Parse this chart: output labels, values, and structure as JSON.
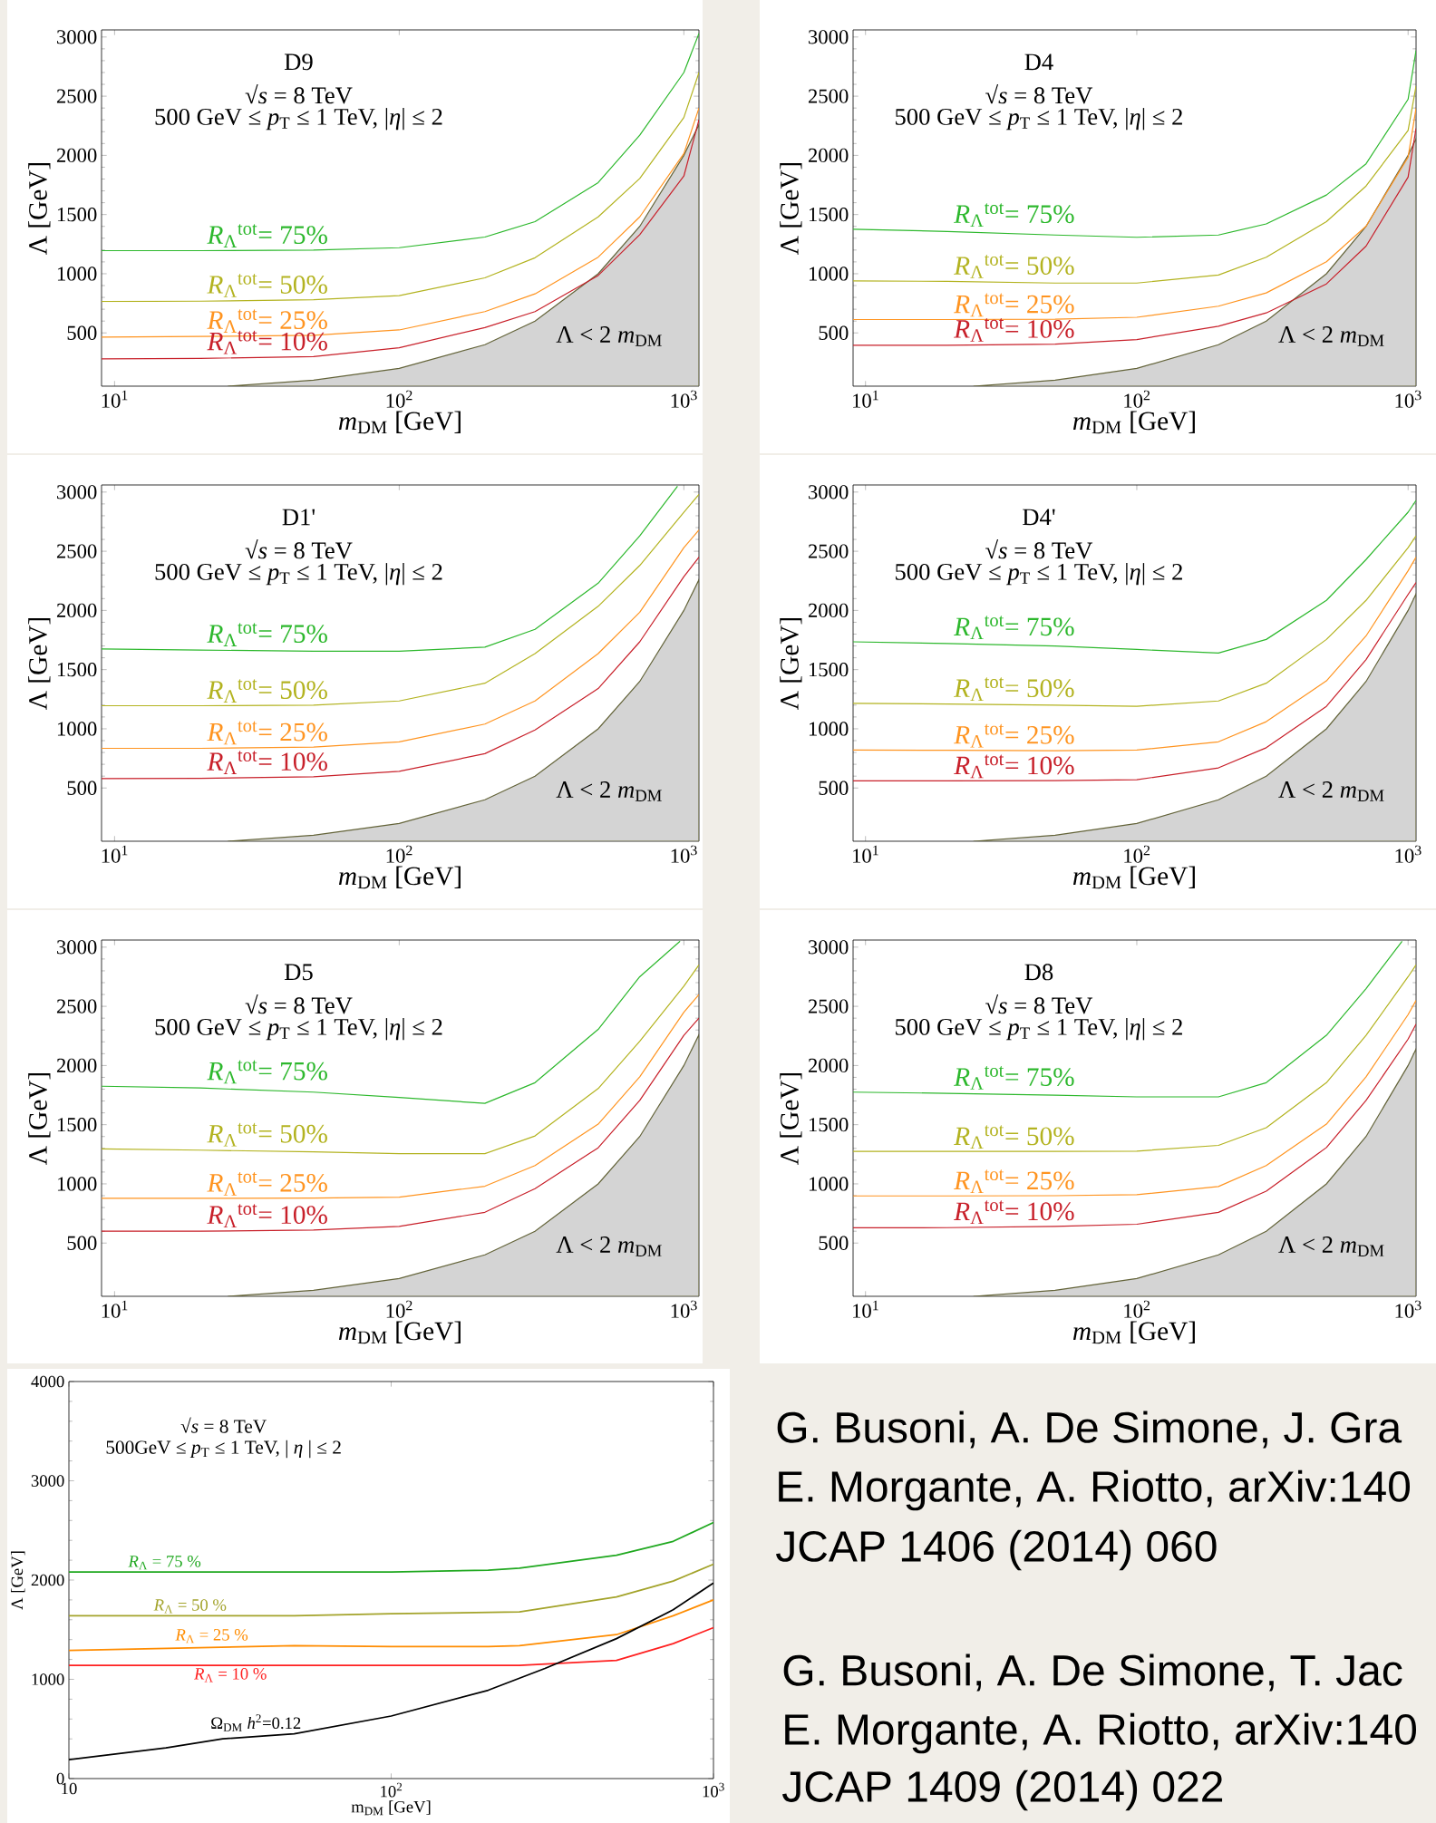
{
  "chart_data": [
    {
      "type": "line",
      "title": "D9",
      "xlabel": "*m*$_{DM}$ [GeV]",
      "ylabel": "Λ [GeV]",
      "log": "x",
      "xlim": [
        9,
        1130
      ],
      "ylim": [
        50,
        3060
      ],
      "xticks": [
        {
          "value": 10,
          "label": "10$^{1}$"
        },
        {
          "value": 100,
          "label": "10$^{2}$"
        },
        {
          "value": 1000,
          "label": "10$^{3}$"
        }
      ],
      "yticks": [
        500,
        1000,
        1500,
        2000,
        2500,
        3000
      ],
      "annotations": [
        "√*s* = 8 TeV",
        "500 GeV ≤ *p*$_{T}$ ≤ 1 TeV, |*η*| ≤ 2",
        "Λ < 2 *m*$_{DM}$"
      ],
      "x": [
        9,
        20,
        50,
        100,
        200,
        300,
        500,
        700,
        1000,
        1130
      ],
      "series": [
        {
          "name": "*R*$_{Λ}$$^{tot}$= 75%",
          "color": "#2db82d",
          "values": [
            1195,
            1195,
            1200,
            1220,
            1310,
            1440,
            1770,
            2170,
            2700,
            3030
          ]
        },
        {
          "name": "*R*$_{Λ}$$^{tot}$= 50%",
          "color": "#b3b320",
          "values": [
            765,
            768,
            780,
            815,
            965,
            1135,
            1480,
            1805,
            2320,
            2700
          ]
        },
        {
          "name": "*R*$_{Λ}$$^{tot}$= 25%",
          "color": "#ff9420",
          "values": [
            465,
            470,
            480,
            525,
            680,
            830,
            1140,
            1480,
            2015,
            2400
          ]
        },
        {
          "name": "*R*$_{Λ}$$^{tot}$= 10%",
          "color": "#c8202a",
          "values": [
            280,
            285,
            300,
            375,
            545,
            680,
            985,
            1330,
            1825,
            2300
          ]
        },
        {
          "type": "area",
          "color": "#d4d4d4",
          "x": [
            25,
            50,
            100,
            200,
            300,
            500,
            700,
            1000,
            1130
          ],
          "values": [
            50,
            100,
            200,
            400,
            600,
            1000,
            1400,
            2000,
            2260
          ]
        }
      ]
    },
    {
      "type": "line",
      "title": "D4",
      "xlabel": "*m*$_{DM}$ [GeV]",
      "ylabel": "Λ [GeV]",
      "log": "x",
      "xlim": [
        9,
        1070
      ],
      "ylim": [
        50,
        3060
      ],
      "xticks": [
        {
          "value": 10,
          "label": "10$^{1}$"
        },
        {
          "value": 100,
          "label": "10$^{2}$"
        },
        {
          "value": 1000,
          "label": "10$^{3}$"
        }
      ],
      "yticks": [
        500,
        1000,
        1500,
        2000,
        2500,
        3000
      ],
      "annotations": [
        "√*s* = 8 TeV",
        "500 GeV ≤ *p*$_{T}$ ≤ 1 TeV, |*η*| ≤ 2",
        "Λ < 2 *m*$_{DM}$"
      ],
      "x": [
        9,
        20,
        50,
        100,
        200,
        300,
        500,
        700,
        1000,
        1070
      ],
      "series": [
        {
          "name": "*R*$_{Λ}$$^{tot}$= 75%",
          "color": "#2db82d",
          "values": [
            1376,
            1357,
            1327,
            1308,
            1327,
            1421,
            1665,
            1929,
            2474,
            2887
          ]
        },
        {
          "name": "*R*$_{Λ}$$^{tot}$= 50%",
          "color": "#b3b320",
          "values": [
            940,
            935,
            921,
            921,
            989,
            1139,
            1440,
            1741,
            2210,
            2586
          ]
        },
        {
          "name": "*R*$_{Λ}$$^{tot}$= 25%",
          "color": "#ff9420",
          "values": [
            613,
            613,
            615,
            632,
            726,
            838,
            1101,
            1402,
            1985,
            2398
          ]
        },
        {
          "name": "*R*$_{Λ}$$^{tot}$= 10%",
          "color": "#c8202a",
          "values": [
            395,
            395,
            405,
            444,
            556,
            669,
            914,
            1233,
            1816,
            2229
          ]
        },
        {
          "type": "area",
          "color": "#d4d4d4",
          "x": [
            25,
            50,
            100,
            200,
            300,
            500,
            700,
            1000,
            1070
          ],
          "values": [
            50,
            100,
            200,
            400,
            600,
            1000,
            1400,
            2000,
            2140
          ]
        }
      ]
    },
    {
      "type": "line",
      "title": "D1'",
      "xlabel": "*m*$_{DM}$ [GeV]",
      "ylabel": "Λ [GeV]",
      "log": "x",
      "xlim": [
        9,
        1130
      ],
      "ylim": [
        50,
        3060
      ],
      "xticks": [
        {
          "value": 10,
          "label": "10$^{1}$"
        },
        {
          "value": 100,
          "label": "10$^{2}$"
        },
        {
          "value": 1000,
          "label": "10$^{3}$"
        }
      ],
      "yticks": [
        500,
        1000,
        1500,
        2000,
        2500,
        3000
      ],
      "annotations": [
        "√*s* = 8 TeV",
        "500 GeV ≤ *p*$_{T}$ ≤ 1 TeV, |*η*| ≤ 2",
        "Λ < 2 *m*$_{DM}$"
      ],
      "x": [
        9,
        20,
        50,
        100,
        200,
        300,
        500,
        700,
        1000,
        1130
      ],
      "series": [
        {
          "name": "*R*$_{Λ}$$^{tot}$= 75%",
          "color": "#2db82d",
          "x": [
            9,
            20,
            50,
            100,
            200,
            300,
            500,
            700,
            950
          ],
          "values": [
            1675,
            1665,
            1655,
            1655,
            1690,
            1840,
            2230,
            2630,
            3050
          ]
        },
        {
          "name": "*R*$_{Λ}$$^{tot}$= 50%",
          "color": "#b3b320",
          "values": [
            1195,
            1195,
            1200,
            1235,
            1385,
            1635,
            2035,
            2380,
            2830,
            2980
          ]
        },
        {
          "name": "*R*$_{Λ}$$^{tot}$= 25%",
          "color": "#ff9420",
          "values": [
            835,
            835,
            845,
            890,
            1040,
            1235,
            1635,
            1985,
            2530,
            2680
          ]
        },
        {
          "name": "*R*$_{Λ}$$^{tot}$= 10%",
          "color": "#c8202a",
          "values": [
            580,
            582,
            595,
            640,
            790,
            990,
            1340,
            1735,
            2285,
            2450
          ]
        },
        {
          "type": "area",
          "color": "#d4d4d4",
          "x": [
            25,
            50,
            100,
            200,
            300,
            500,
            700,
            1000,
            1130
          ],
          "values": [
            50,
            100,
            200,
            400,
            600,
            1000,
            1400,
            2000,
            2260
          ]
        }
      ]
    },
    {
      "type": "line",
      "title": "D4'",
      "xlabel": "*m*$_{DM}$ [GeV]",
      "ylabel": "Λ [GeV]",
      "log": "x",
      "xlim": [
        9,
        1070
      ],
      "ylim": [
        50,
        3060
      ],
      "xticks": [
        {
          "value": 10,
          "label": "10$^{1}$"
        },
        {
          "value": 100,
          "label": "10$^{2}$"
        },
        {
          "value": 1000,
          "label": "10$^{3}$"
        }
      ],
      "yticks": [
        500,
        1000,
        1500,
        2000,
        2500,
        3000
      ],
      "annotations": [
        "√*s* = 8 TeV",
        "500 GeV ≤ *p*$_{T}$ ≤ 1 TeV, |*η*| ≤ 2",
        "Λ < 2 *m*$_{DM}$"
      ],
      "x": [
        9,
        20,
        50,
        100,
        200,
        300,
        500,
        700,
        1000,
        1070
      ],
      "series": [
        {
          "name": "*R*$_{Λ}$$^{tot}$= 75%",
          "color": "#2db82d",
          "values": [
            1735,
            1720,
            1700,
            1670,
            1640,
            1755,
            2085,
            2430,
            2830,
            2930
          ]
        },
        {
          "name": "*R*$_{Λ}$$^{tot}$= 50%",
          "color": "#b3b320",
          "values": [
            1215,
            1210,
            1200,
            1190,
            1235,
            1385,
            1755,
            2085,
            2530,
            2630
          ]
        },
        {
          "name": "*R*$_{Λ}$$^{tot}$= 25%",
          "color": "#ff9420",
          "values": [
            820,
            818,
            815,
            820,
            890,
            1060,
            1405,
            1785,
            2335,
            2450
          ]
        },
        {
          "name": "*R*$_{Λ}$$^{tot}$= 10%",
          "color": "#c8202a",
          "values": [
            560,
            560,
            562,
            570,
            670,
            840,
            1190,
            1585,
            2135,
            2235
          ]
        },
        {
          "type": "area",
          "color": "#d4d4d4",
          "x": [
            25,
            50,
            100,
            200,
            300,
            500,
            700,
            1000,
            1070
          ],
          "values": [
            50,
            100,
            200,
            400,
            600,
            1000,
            1400,
            2000,
            2140
          ]
        }
      ]
    },
    {
      "type": "line",
      "title": "D5",
      "xlabel": "*m*$_{DM}$ [GeV]",
      "ylabel": "Λ [GeV]",
      "log": "x",
      "xlim": [
        9,
        1130
      ],
      "ylim": [
        50,
        3060
      ],
      "xticks": [
        {
          "value": 10,
          "label": "10$^{1}$"
        },
        {
          "value": 100,
          "label": "10$^{2}$"
        },
        {
          "value": 1000,
          "label": "10$^{3}$"
        }
      ],
      "yticks": [
        500,
        1000,
        1500,
        2000,
        2500,
        3000
      ],
      "annotations": [
        "√*s* = 8 TeV",
        "500 GeV ≤ *p*$_{T}$ ≤ 1 TeV, |*η*| ≤ 2",
        "Λ < 2 *m*$_{DM}$"
      ],
      "x": [
        9,
        20,
        50,
        100,
        200,
        300,
        500,
        700,
        1000,
        1130
      ],
      "series": [
        {
          "name": "*R*$_{Λ}$$^{tot}$= 75%",
          "color": "#2db82d",
          "x": [
            9,
            20,
            50,
            100,
            200,
            300,
            500,
            700,
            970
          ],
          "values": [
            1825,
            1810,
            1775,
            1730,
            1680,
            1855,
            2305,
            2750,
            3050
          ]
        },
        {
          "name": "*R*$_{Λ}$$^{tot}$= 50%",
          "color": "#b3b320",
          "values": [
            1295,
            1285,
            1270,
            1255,
            1255,
            1405,
            1805,
            2205,
            2670,
            2850
          ]
        },
        {
          "name": "*R*$_{Λ}$$^{tot}$= 25%",
          "color": "#ff9420",
          "values": [
            878,
            878,
            880,
            888,
            980,
            1155,
            1505,
            1905,
            2450,
            2600
          ]
        },
        {
          "name": "*R*$_{Λ}$$^{tot}$= 10%",
          "color": "#c8202a",
          "values": [
            600,
            600,
            610,
            640,
            760,
            960,
            1305,
            1705,
            2255,
            2400
          ]
        },
        {
          "type": "area",
          "color": "#d4d4d4",
          "x": [
            25,
            50,
            100,
            200,
            300,
            500,
            700,
            1000,
            1130
          ],
          "values": [
            50,
            100,
            200,
            400,
            600,
            1000,
            1400,
            2000,
            2260
          ]
        }
      ]
    },
    {
      "type": "line",
      "title": "D8",
      "xlabel": "*m*$_{DM}$ [GeV]",
      "ylabel": "Λ [GeV]",
      "log": "x",
      "xlim": [
        9,
        1070
      ],
      "ylim": [
        50,
        3060
      ],
      "xticks": [
        {
          "value": 10,
          "label": "10$^{1}$"
        },
        {
          "value": 100,
          "label": "10$^{2}$"
        },
        {
          "value": 1000,
          "label": "10$^{3}$"
        }
      ],
      "yticks": [
        500,
        1000,
        1500,
        2000,
        2500,
        3000
      ],
      "annotations": [
        "√*s* = 8 TeV",
        "500 GeV ≤ *p*$_{T}$ ≤ 1 TeV, |*η*| ≤ 2",
        "Λ < 2 *m*$_{DM}$"
      ],
      "x": [
        9,
        20,
        50,
        100,
        200,
        300,
        500,
        700,
        1000,
        1070
      ],
      "series": [
        {
          "name": "*R*$_{Λ}$$^{tot}$= 75%",
          "color": "#2db82d",
          "x": [
            9,
            20,
            50,
            100,
            200,
            300,
            500,
            700,
            950
          ],
          "values": [
            1775,
            1765,
            1750,
            1735,
            1735,
            1855,
            2255,
            2650,
            3050
          ]
        },
        {
          "name": "*R*$_{Λ}$$^{tot}$= 50%",
          "color": "#b3b320",
          "values": [
            1275,
            1275,
            1275,
            1277,
            1325,
            1475,
            1855,
            2255,
            2750,
            2850
          ]
        },
        {
          "name": "*R*$_{Λ}$$^{tot}$= 25%",
          "color": "#ff9420",
          "values": [
            898,
            898,
            900,
            908,
            978,
            1155,
            1505,
            1905,
            2430,
            2550
          ]
        },
        {
          "name": "*R*$_{Λ}$$^{tot}$= 10%",
          "color": "#c8202a",
          "values": [
            629,
            630,
            640,
            659,
            759,
            938,
            1307,
            1705,
            2223,
            2350
          ]
        },
        {
          "type": "area",
          "color": "#d4d4d4",
          "x": [
            25,
            50,
            100,
            200,
            300,
            500,
            700,
            1000,
            1070
          ],
          "values": [
            50,
            100,
            200,
            400,
            600,
            1000,
            1400,
            2000,
            2140
          ]
        }
      ]
    },
    {
      "type": "line",
      "xlabel": "m$_{DM}$ [GeV]",
      "ylabel": "Λ [GeV]",
      "log": "x",
      "xlim": [
        10,
        1000
      ],
      "ylim": [
        0,
        4000
      ],
      "xticks": [
        10,
        {
          "value": 100,
          "label": "10$^{2}$"
        },
        {
          "value": 1000,
          "label": "10$^{3}$"
        }
      ],
      "yticks": [
        0,
        1000,
        2000,
        3000,
        4000
      ],
      "annotations": [
        "√*s* = 8 TeV",
        "500GeV ≤ *p*$_{T}$ ≤ 1 TeV,  | *η* |  ≤ 2"
      ],
      "series": [
        {
          "name": "*R*$_{Λ}$ = 75 %",
          "color": "#1fa81f",
          "x": [
            10,
            100,
            200,
            250,
            500,
            750,
            1000
          ],
          "values": [
            2080,
            2080,
            2100,
            2120,
            2250,
            2390,
            2580
          ]
        },
        {
          "name": "*R*$_{Λ}$ = 50 %",
          "color": "#a3a32a",
          "x": [
            10,
            50,
            100,
            250,
            500,
            750,
            1000
          ],
          "values": [
            1640,
            1640,
            1660,
            1680,
            1830,
            1990,
            2160
          ]
        },
        {
          "name": "*R*$_{Λ}$ = 25 %",
          "color": "#ff8c00",
          "x": [
            10,
            50,
            100,
            200,
            250,
            500,
            750,
            1000
          ],
          "values": [
            1290,
            1340,
            1330,
            1330,
            1340,
            1450,
            1640,
            1800
          ]
        },
        {
          "name": "*R*$_{Λ}$ = 10 %",
          "color": "#ff2020",
          "x": [
            10,
            250,
            500,
            750,
            1000
          ],
          "values": [
            1140,
            1140,
            1190,
            1360,
            1520
          ]
        },
        {
          "name": "Ω$_{DM}$ *h*$^{2}$=0.12",
          "color": "#000000",
          "x": [
            10,
            20,
            30,
            50,
            100,
            200,
            300,
            500,
            750,
            1000
          ],
          "values": [
            190,
            310,
            400,
            450,
            630,
            890,
            1110,
            1410,
            1700,
            1970
          ]
        }
      ]
    },
    {
      "type": "other",
      "annotations": [
        "G. Busoni, A. De Simone, J. Gra",
        "E. Morgante, A. Riotto, arXiv:140",
        "JCAP 1406 (2014) 060",
        "G. Busoni, A. De Simone, T. Jac",
        "E. Morgante, A. Riotto, arXiv:140",
        "JCAP 1409 (2014) 022"
      ]
    }
  ]
}
